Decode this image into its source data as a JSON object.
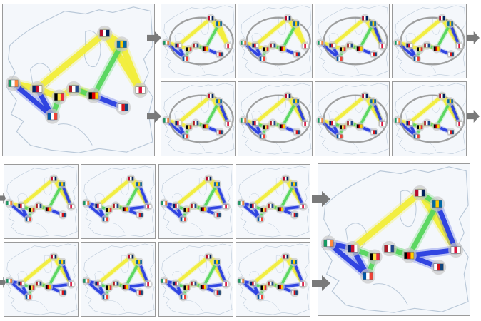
{
  "figure": {
    "description_labels": []
  },
  "colors": {
    "background_map": "#f4f7fb",
    "coast": "#b9c8d8",
    "route_yellow": "#f2ee3a",
    "route_green": "#57d65d",
    "route_blue": "#2a3fe0",
    "node_halo": "#c9c9c9",
    "ellipse": "#8a8a8a",
    "arrow": "#7a7a7a"
  },
  "icons": {
    "node": "flag-node-icon",
    "arrow": "right-arrow-icon"
  }
}
